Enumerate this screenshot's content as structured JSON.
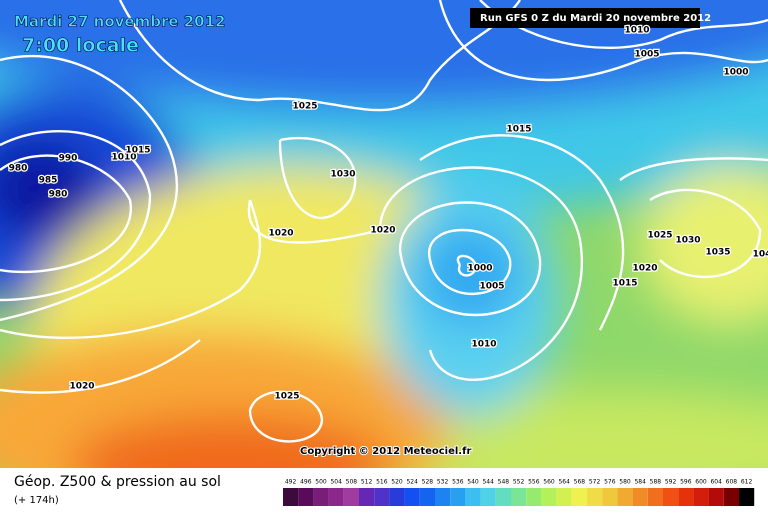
{
  "header": {
    "date": "Mardi 27 novembre 2012",
    "time": "7:00 locale",
    "run": "Run GFS 0 Z du Mardi 20 novembre 2012",
    "copyright": "Copyright © 2012 Meteociel.fr"
  },
  "isobar_labels": [
    "980",
    "990",
    "985",
    "980",
    "1010",
    "1015",
    "1025",
    "1030",
    "1020",
    "1020",
    "1015",
    "1010",
    "1005",
    "1000",
    "1000",
    "1005",
    "1010",
    "1025",
    "1030",
    "1035",
    "104",
    "1020",
    "1015",
    "1020",
    "1025"
  ],
  "legend": {
    "title": "Géop. Z500 & pression au sol",
    "lead": "(+ 174h)",
    "values": [
      492,
      496,
      500,
      504,
      508,
      512,
      516,
      520,
      524,
      528,
      532,
      536,
      540,
      544,
      548,
      552,
      556,
      560,
      564,
      568,
      572,
      576,
      580,
      584,
      588,
      592,
      596,
      600,
      604,
      608,
      612
    ],
    "colors": [
      "#3c0a3c",
      "#5a0a5a",
      "#781e78",
      "#8c288c",
      "#a03ca0",
      "#6428b4",
      "#5032c8",
      "#283cdc",
      "#1450f0",
      "#1464f0",
      "#1e82f0",
      "#28a0f0",
      "#3cbef0",
      "#50d2e6",
      "#64dcbe",
      "#78e696",
      "#96eb6e",
      "#b4f05a",
      "#d2f050",
      "#f0f050",
      "#f0dc46",
      "#f0c83c",
      "#f0aa32",
      "#f08c28",
      "#f06e1e",
      "#f05014",
      "#e6320a",
      "#d21e0a",
      "#b40a0a",
      "#780000",
      "#000000"
    ]
  }
}
